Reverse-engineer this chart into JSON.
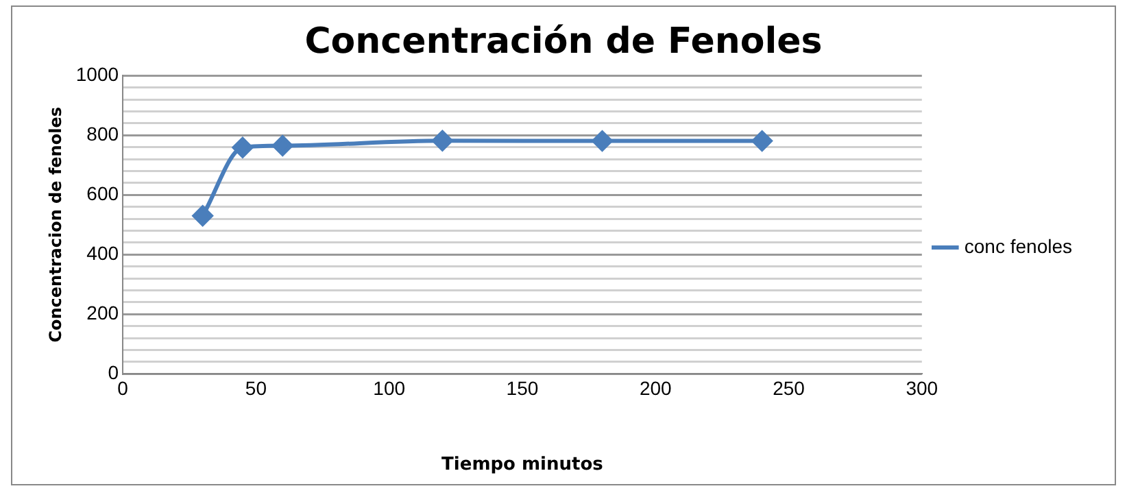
{
  "chart_data": {
    "type": "line",
    "title": "Concentración de Fenoles",
    "xlabel": "Tiempo minutos",
    "ylabel": "Concentracion de fenoles",
    "x": [
      30,
      45,
      60,
      120,
      180,
      240
    ],
    "series": [
      {
        "name": "conc fenoles",
        "color": "#4a7ebb",
        "values": [
          530,
          759,
          765,
          782,
          781,
          781
        ]
      }
    ],
    "xlim": [
      0,
      300
    ],
    "xticks": [
      0,
      50,
      100,
      150,
      200,
      250,
      300
    ],
    "ylim": [
      0,
      1000
    ],
    "yticks": [
      0,
      {
        "value": 40,
        "label": null
      },
      {
        "value": 80,
        "label": null
      },
      {
        "value": 120,
        "label": null
      },
      {
        "value": 160,
        "label": null
      },
      200,
      {
        "value": 240,
        "label": null
      },
      {
        "value": 280,
        "label": null
      },
      {
        "value": 320,
        "label": null
      },
      {
        "value": 360,
        "label": null
      },
      400,
      {
        "value": 440,
        "label": null
      },
      {
        "value": 480,
        "label": null
      },
      {
        "value": 520,
        "label": null
      },
      {
        "value": 560,
        "label": null
      },
      600,
      {
        "value": 640,
        "label": null
      },
      {
        "value": 680,
        "label": null
      },
      {
        "value": 720,
        "label": null
      },
      {
        "value": 760,
        "label": null
      },
      800,
      {
        "value": 840,
        "label": null
      },
      {
        "value": 880,
        "label": null
      },
      {
        "value": 920,
        "label": null
      },
      {
        "value": 960,
        "label": null
      },
      1000
    ],
    "grid": "y",
    "legend": "right",
    "marker": "diamond",
    "line_style": "solid"
  }
}
